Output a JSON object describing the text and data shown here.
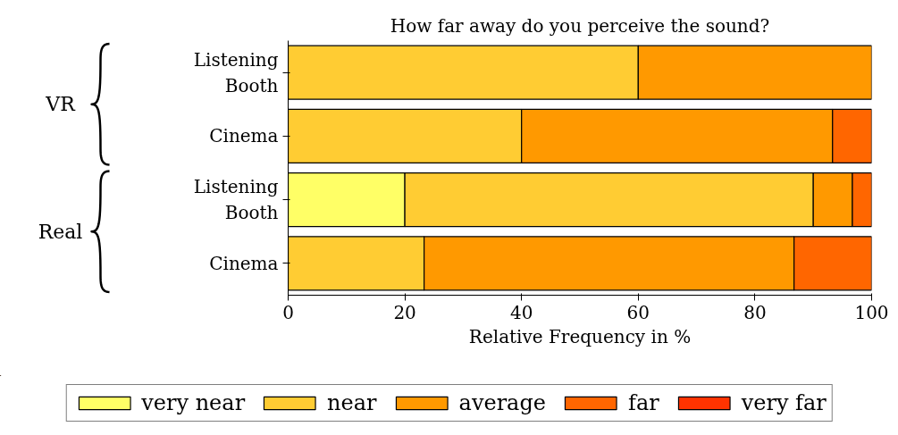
{
  "chart_data": {
    "type": "bar",
    "orientation": "horizontal",
    "stacked": true,
    "title": "How far away do you perceive the sound?",
    "xlabel": "Relative Frequency in %",
    "categories": [
      "Listening\nBooth",
      "Cinema",
      "Listening\nBooth",
      "Cinema"
    ],
    "annotations": [
      "VR",
      "Real"
    ],
    "series": [
      {
        "name": "very near",
        "color": "#ffff66",
        "values": [
          0,
          0,
          20,
          0
        ]
      },
      {
        "name": "near",
        "color": "#ffcc33",
        "values": [
          60,
          40,
          70,
          23.3
        ]
      },
      {
        "name": "average",
        "color": "#ff9900",
        "values": [
          40,
          53.3,
          6.7,
          63.4
        ]
      },
      {
        "name": "far",
        "color": "#ff6600",
        "values": [
          0,
          6.7,
          3.3,
          13.3
        ]
      },
      {
        "name": "very far",
        "color": "#ff3300",
        "values": [
          0,
          0,
          0,
          0
        ]
      }
    ],
    "xlim": [
      0,
      100
    ],
    "xticks": [
      0,
      20,
      40,
      60,
      80,
      100
    ],
    "grid": false,
    "legend": "bottom"
  }
}
